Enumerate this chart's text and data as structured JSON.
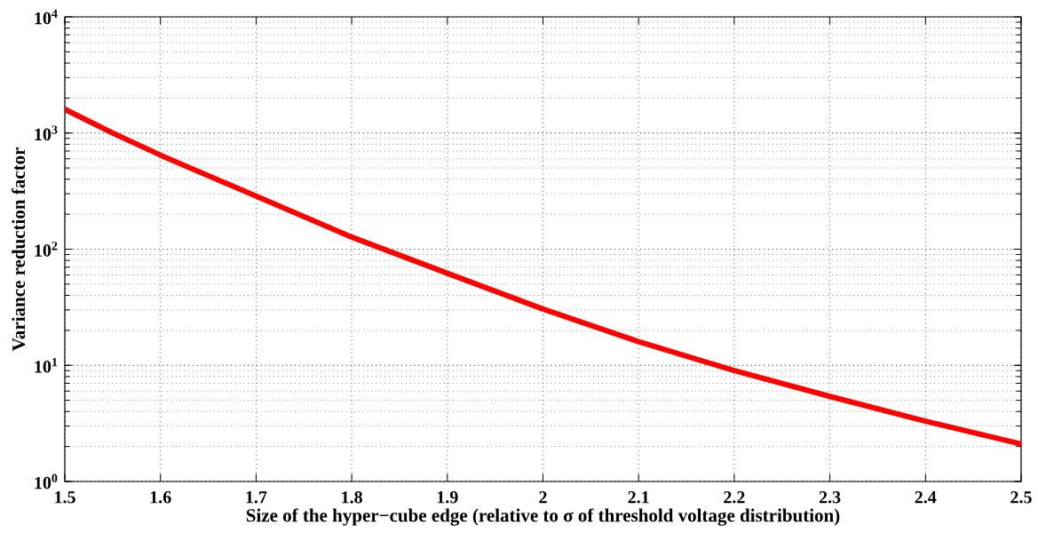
{
  "chart_data": {
    "type": "line",
    "xlabel": "Size of the hyper−cube edge (relative to σ of threshold voltage distribution)",
    "ylabel": "Variance reduction factor",
    "x": [
      1.5,
      1.55,
      1.6,
      1.7,
      1.8,
      1.9,
      2.0,
      2.1,
      2.2,
      2.3,
      2.4,
      2.5
    ],
    "series": [
      {
        "color": "#ff0000",
        "values": [
          1600,
          1000,
          645,
          286,
          127,
          62,
          30.5,
          16,
          9,
          5.4,
          3.3,
          2.1
        ]
      }
    ],
    "log": "y",
    "grid": true,
    "line_style": "solid",
    "marker": "none",
    "xlim": [
      1.5,
      2.5
    ],
    "ylim": [
      1,
      10000
    ],
    "xticks": [
      1.5,
      1.6,
      1.7,
      1.8,
      1.9,
      2,
      2.1,
      2.2,
      2.3,
      2.4,
      2.5
    ],
    "yticks": [
      {
        "value": 1,
        "label": "10$^{0}$"
      },
      {
        "value": 10,
        "label": "10$^{1}$"
      },
      {
        "value": 100,
        "label": "10$^{2}$"
      },
      {
        "value": 1000,
        "label": "10$^{3}$"
      },
      {
        "value": 10000,
        "label": "10$^{4}$"
      }
    ]
  }
}
